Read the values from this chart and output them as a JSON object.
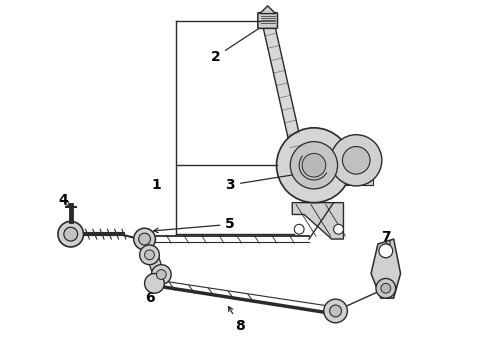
{
  "bg_color": "#ffffff",
  "line_color": "#2a2a2a",
  "label_color": "#000000",
  "fig_width": 4.9,
  "fig_height": 3.6,
  "dpi": 100,
  "label_fontsize": 10
}
